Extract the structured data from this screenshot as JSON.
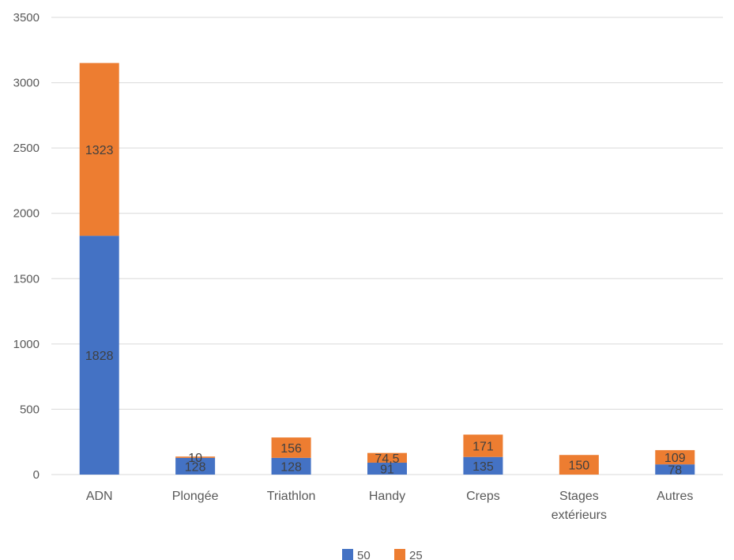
{
  "chart_data": {
    "type": "bar",
    "stacked": true,
    "categories": [
      "ADN",
      "Plongée",
      "Triathlon",
      "Handy",
      "Creps",
      "Stages extérieurs",
      "Autres"
    ],
    "category_lines": [
      [
        "ADN"
      ],
      [
        "Plongée"
      ],
      [
        "Triathlon"
      ],
      [
        "Handy"
      ],
      [
        "Creps"
      ],
      [
        "Stages",
        "extérieurs"
      ],
      [
        "Autres"
      ]
    ],
    "series": [
      {
        "name": "50",
        "color": "#4472c4",
        "values": [
          1828,
          128,
          128,
          91,
          135,
          0,
          78
        ],
        "labels": [
          "1828",
          "128",
          "128",
          "91",
          "135",
          "",
          "78"
        ]
      },
      {
        "name": "25",
        "color": "#ed7d31",
        "values": [
          1323,
          10,
          156,
          74.5,
          171,
          150,
          109
        ],
        "labels": [
          "1323",
          "10",
          "156",
          "74,5",
          "171",
          "150",
          "109"
        ]
      }
    ],
    "ylim": [
      0,
      3500
    ],
    "yticks": [
      0,
      500,
      1000,
      1500,
      2000,
      2500,
      3000,
      3500
    ],
    "grid": true,
    "legend": "bottom",
    "title": "",
    "xlabel": "",
    "ylabel": ""
  }
}
